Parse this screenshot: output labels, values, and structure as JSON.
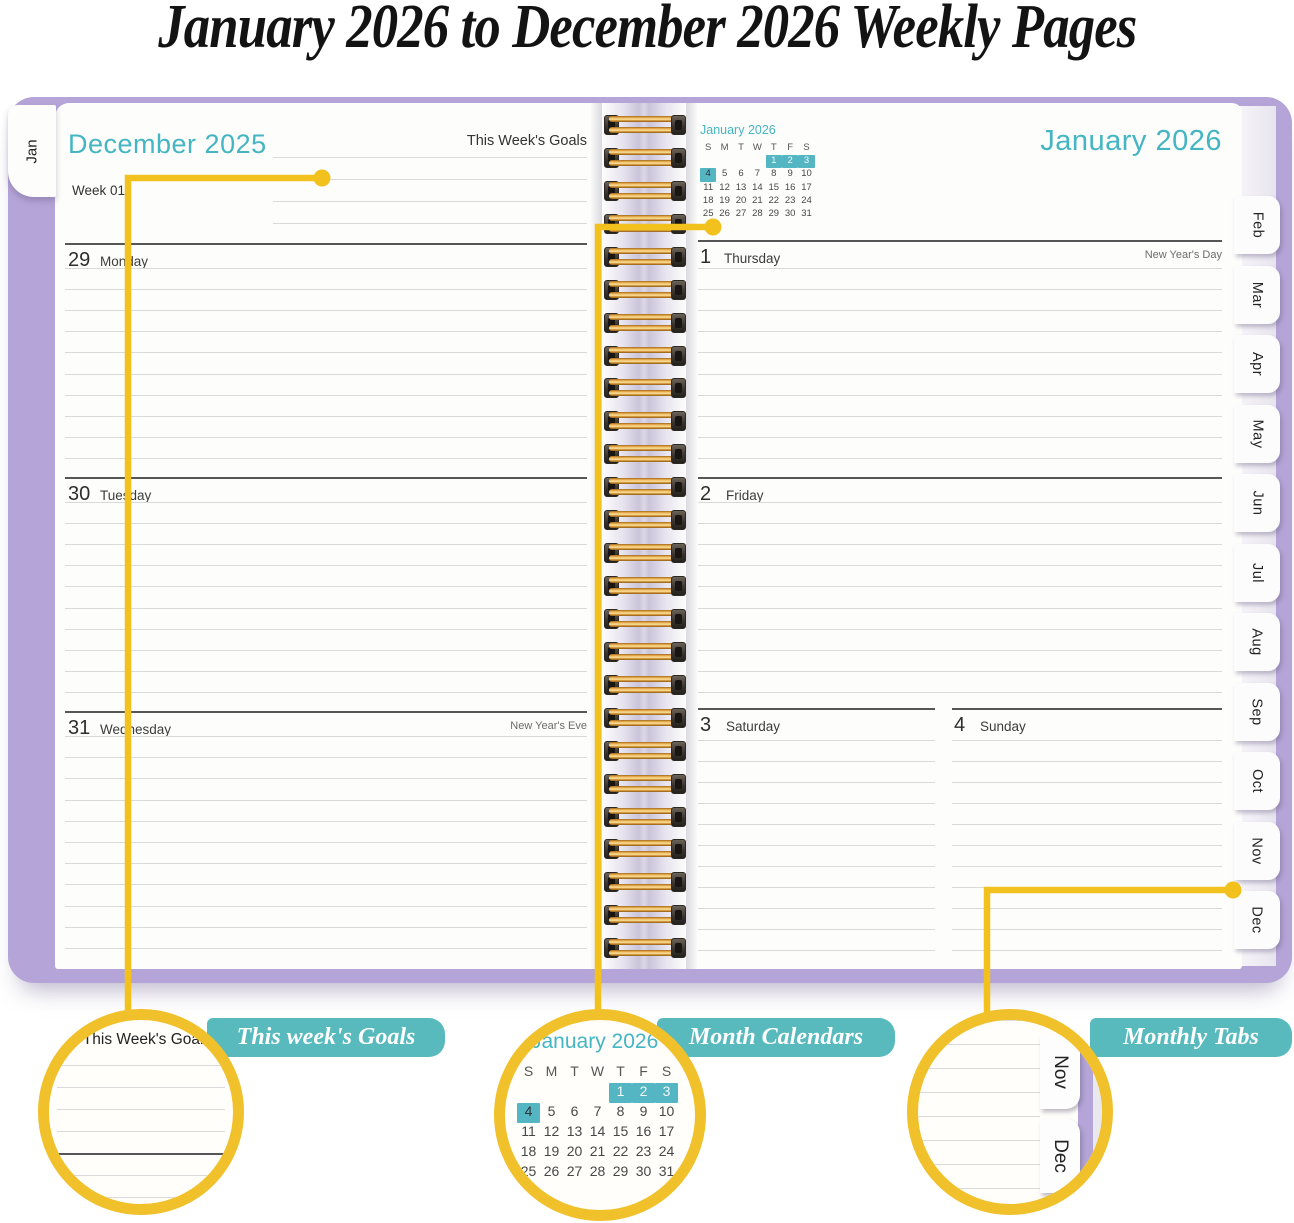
{
  "title": "January 2026 to December 2026 Weekly Pages",
  "left_page": {
    "tab": "Jan",
    "month_title": "December 2025",
    "goals_heading": "This Week's Goals",
    "week_label": "Week 01",
    "days": [
      {
        "num": "29",
        "name": "Monday",
        "holiday": ""
      },
      {
        "num": "30",
        "name": "Tuesday",
        "holiday": ""
      },
      {
        "num": "31",
        "name": "Wednesday",
        "holiday": "New Year's Eve"
      }
    ]
  },
  "right_page": {
    "month_title": "January 2026",
    "mini_calendar": {
      "title": "January 2026",
      "weekday_headers": [
        "S",
        "M",
        "T",
        "W",
        "T",
        "F",
        "S"
      ],
      "weeks": [
        [
          "",
          "",
          "",
          "",
          "1",
          "2",
          "3"
        ],
        [
          "4",
          "5",
          "6",
          "7",
          "8",
          "9",
          "10"
        ],
        [
          "11",
          "12",
          "13",
          "14",
          "15",
          "16",
          "17"
        ],
        [
          "18",
          "19",
          "20",
          "21",
          "22",
          "23",
          "24"
        ],
        [
          "25",
          "26",
          "27",
          "28",
          "29",
          "30",
          "31"
        ]
      ],
      "highlighted": [
        "1",
        "2",
        "3",
        "4"
      ]
    },
    "days": [
      {
        "num": "1",
        "name": "Thursday",
        "holiday": "New Year's Day"
      },
      {
        "num": "2",
        "name": "Friday",
        "holiday": ""
      },
      {
        "num": "3",
        "name": "Saturday",
        "holiday": ""
      },
      {
        "num": "4",
        "name": "Sunday",
        "holiday": ""
      }
    ],
    "tabs": [
      "Feb",
      "Mar",
      "Apr",
      "May",
      "Jun",
      "Jul",
      "Aug",
      "Sep",
      "Oct",
      "Nov",
      "Dec"
    ]
  },
  "callouts": [
    {
      "label": "This week's Goals"
    },
    {
      "label": "Month Calendars"
    },
    {
      "label": "Monthly Tabs",
      "tabs": [
        "Nov",
        "Dec"
      ]
    }
  ],
  "colors": {
    "teal_heading": "#44b5c2",
    "label_bg": "#58babd",
    "cover_purple": "#b5a4d7",
    "connector_yellow": "#f2c11d",
    "calendar_highlight": "#54b5c3"
  }
}
